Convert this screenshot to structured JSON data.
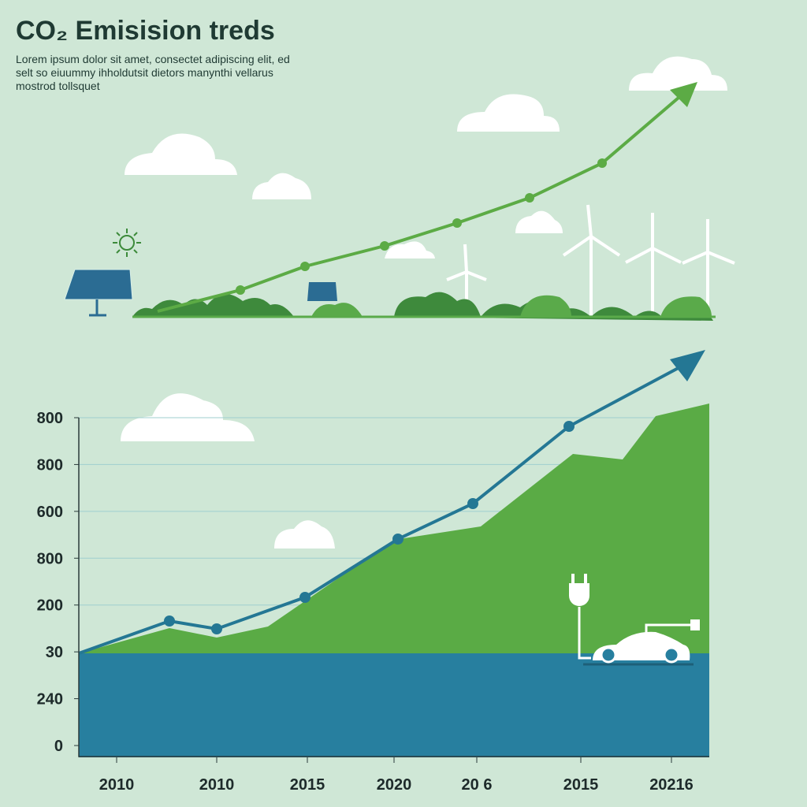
{
  "header": {
    "title": "CO₂ Emisision treds",
    "subtitle": [
      "Lorem ipsum dolor sit amet, consectet adipiscing elit, ed",
      "selt so eiuummy ihholdutsit dietors manynthi vellarus",
      "mostrod tollsquet"
    ]
  },
  "axis": {
    "y_labels": [
      "800",
      "800",
      "600",
      "800",
      "200",
      "30",
      "240",
      "0"
    ],
    "x_labels": [
      "2010",
      "2010",
      "2015",
      "2020",
      "20 6",
      "2015",
      "20216"
    ]
  }
}
